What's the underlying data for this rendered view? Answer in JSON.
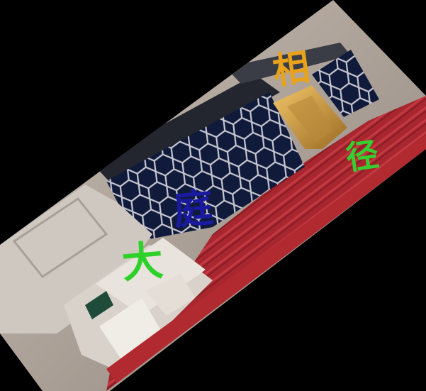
{
  "scene": {
    "overlay_characters": [
      {
        "text": "相",
        "color": "#e8a21c"
      },
      {
        "text": "径",
        "color": "#34d02f"
      },
      {
        "text": "庭",
        "color": "#1a1aa0"
      },
      {
        "text": "大",
        "color": "#2ed12a"
      }
    ],
    "colors": {
      "background": "#000000",
      "carpet_red": "#a8262e",
      "wall_beige": "#b9aea3",
      "hex_screen_dark": "#101a3a",
      "hex_grid_line": "#c8c8d2",
      "marble": "#cfc8c0",
      "lit_doorway": "#d9a94a"
    },
    "icons": [
      "hexagonal-grille",
      "marble-cenotaph",
      "lit-doorway",
      "calligraphy-band"
    ]
  }
}
